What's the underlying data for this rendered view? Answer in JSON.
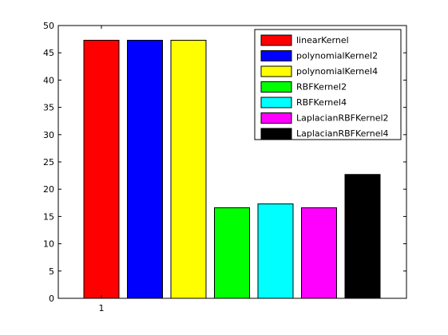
{
  "chart_data": {
    "type": "bar",
    "categories": [
      "1"
    ],
    "series": [
      {
        "name": "linearKernel",
        "values": [
          47.3
        ],
        "color": "#ff0000"
      },
      {
        "name": "polynomialKernel2",
        "values": [
          47.3
        ],
        "color": "#0000ff"
      },
      {
        "name": "polynomialKernel4",
        "values": [
          47.3
        ],
        "color": "#ffff00"
      },
      {
        "name": "RBFKernel2",
        "values": [
          16.6
        ],
        "color": "#00ff00"
      },
      {
        "name": "RBFKernel4",
        "values": [
          17.3
        ],
        "color": "#00ffff"
      },
      {
        "name": "LaplacianRBFKernel2",
        "values": [
          16.6
        ],
        "color": "#ff00ff"
      },
      {
        "name": "LaplacianRBFKernel4",
        "values": [
          22.7
        ],
        "color": "#000000"
      }
    ],
    "ylim": [
      0,
      50
    ],
    "yticks": [
      0,
      5,
      10,
      15,
      20,
      25,
      30,
      35,
      40,
      45,
      50
    ],
    "xticks": [
      "1"
    ],
    "legend_position": "top-right",
    "grid": false
  }
}
